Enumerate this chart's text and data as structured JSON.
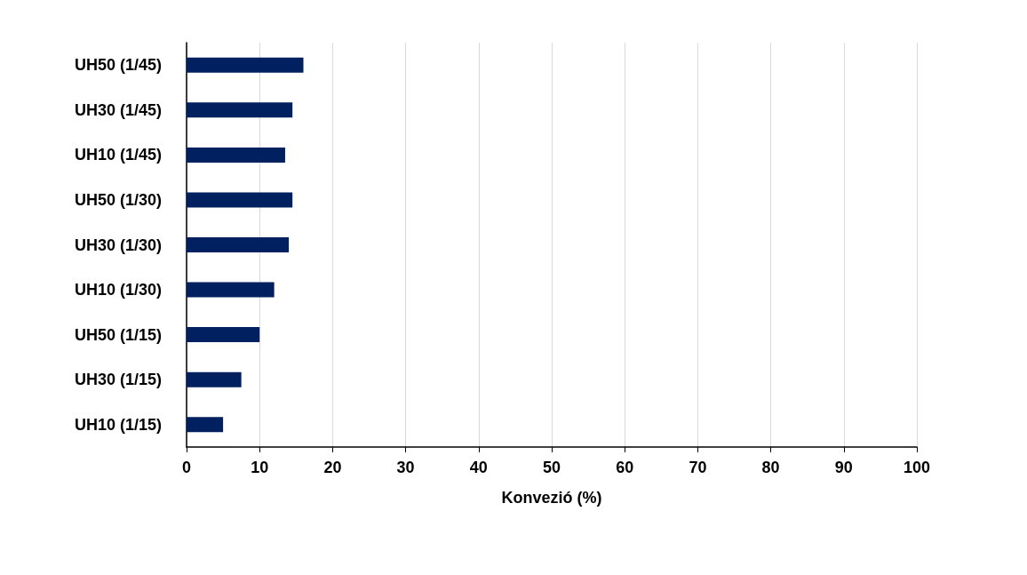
{
  "chart_data": {
    "type": "bar",
    "orientation": "horizontal",
    "xlabel": "Konvezió (%)",
    "categories": [
      "UH50 (1/45)",
      "UH30 (1/45)",
      "UH10 (1/45)",
      "UH50 (1/30)",
      "UH30 (1/30)",
      "UH10 (1/30)",
      "UH50 (1/15)",
      "UH30 (1/15)",
      "UH10 (1/15)"
    ],
    "values": [
      16,
      14.5,
      13.5,
      14.5,
      14,
      12,
      10,
      7.5,
      5
    ],
    "color": "#002060",
    "xlim": [
      0,
      100
    ],
    "xticks": [
      0,
      10,
      20,
      30,
      40,
      50,
      60,
      70,
      80,
      90,
      100
    ],
    "grid": "x"
  }
}
